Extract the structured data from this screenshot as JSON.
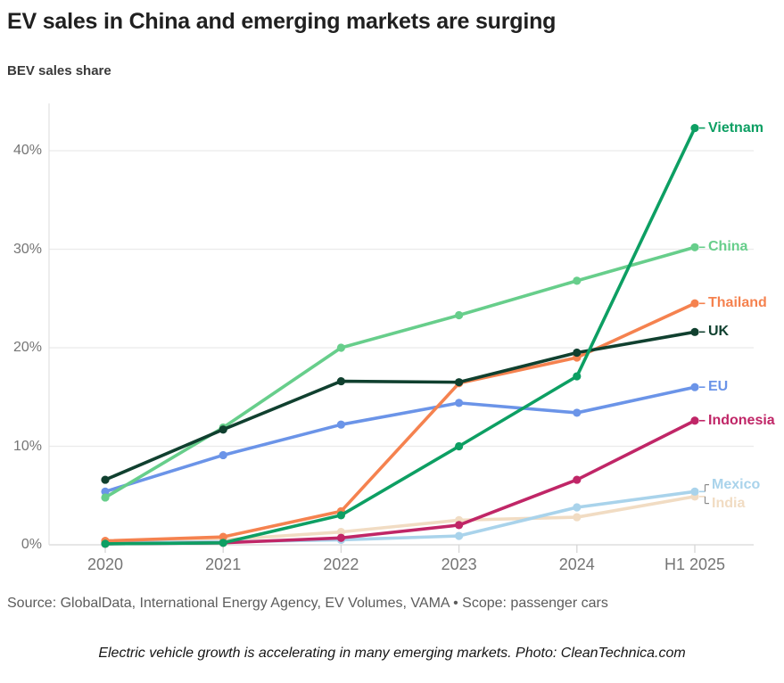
{
  "page": {
    "title": "EV sales in China and emerging markets are surging",
    "subtitle": "BEV sales share",
    "source": "Source: GlobalData, International Energy Agency, EV Volumes, VAMA • Scope: passenger cars",
    "caption": "Electric vehicle growth is accelerating in many emerging markets. Photo: CleanTechnica.com"
  },
  "chart_data": {
    "type": "line",
    "title": "BEV sales share",
    "xlabel": "",
    "ylabel": "BEV sales share (%)",
    "categories": [
      "2020",
      "2021",
      "2022",
      "2023",
      "2024",
      "H1 2025"
    ],
    "y_ticks": [
      {
        "value": 0,
        "label": "0%"
      },
      {
        "value": 10,
        "label": "10%"
      },
      {
        "value": 20,
        "label": "20%"
      },
      {
        "value": 30,
        "label": "30%"
      },
      {
        "value": 40,
        "label": "40%"
      }
    ],
    "ylim": [
      0,
      44
    ],
    "grid": true,
    "legend_position": "direct-labels-at-line-ends",
    "note": "series listed bottom-to-top draw order; values are percent BEV sales share",
    "series": [
      {
        "name": "India",
        "color": "#f1dcc3",
        "values": [
          0.2,
          0.5,
          1.3,
          2.5,
          2.8,
          4.9
        ]
      },
      {
        "name": "Mexico",
        "color": "#a9d3eb",
        "values": [
          0.2,
          0.3,
          0.5,
          0.9,
          3.8,
          5.4
        ]
      },
      {
        "name": "Indonesia",
        "color": "#c02667",
        "values": [
          0.1,
          0.2,
          0.7,
          2.0,
          6.6,
          12.6
        ]
      },
      {
        "name": "EU",
        "color": "#6b94e8",
        "values": [
          5.4,
          9.1,
          12.2,
          14.4,
          13.4,
          16.0
        ]
      },
      {
        "name": "China",
        "color": "#67ce8b",
        "values": [
          4.8,
          11.9,
          20.0,
          23.3,
          26.8,
          30.2
        ]
      },
      {
        "name": "Thailand",
        "color": "#f5824f",
        "values": [
          0.4,
          0.8,
          3.4,
          16.4,
          19.0,
          24.5
        ]
      },
      {
        "name": "UK",
        "color": "#10402f",
        "values": [
          6.6,
          11.7,
          16.6,
          16.5,
          19.5,
          21.6
        ]
      },
      {
        "name": "Vietnam",
        "color": "#0d9f63",
        "values": [
          0.1,
          0.2,
          3.0,
          10.0,
          17.1,
          42.3
        ]
      }
    ]
  },
  "style": {
    "gridline_color": "#ebebeb",
    "axis_color": "#d6d6d6",
    "tick_label_color": "#757575",
    "connector_gray": "#8a8a8a"
  }
}
